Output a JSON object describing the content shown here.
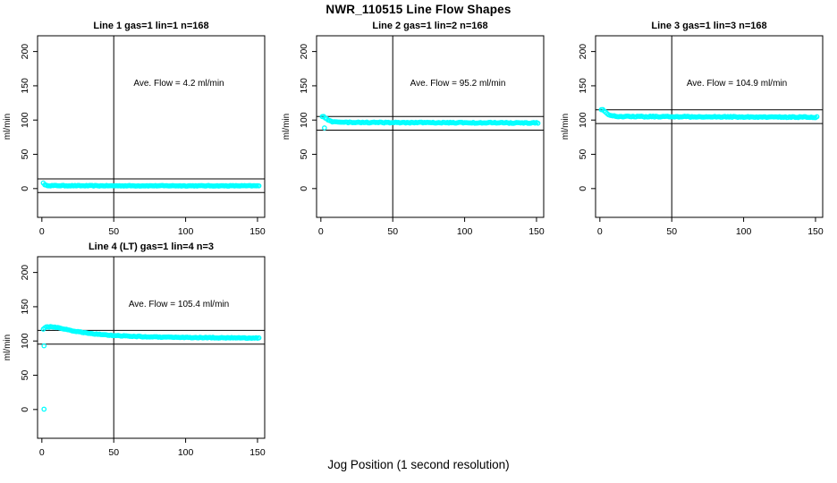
{
  "title": "NWR_110515  Line Flow Shapes",
  "xlabel": "Jog Position (1 second resolution)",
  "colors": {
    "marker": "#00ffff",
    "axis": "#000000",
    "background": "#ffffff",
    "text": "#000000"
  },
  "chart_data": [
    {
      "type": "scatter",
      "title": "Line 1 gas=1 lin=1 n=168",
      "n": 168,
      "annotation": "Ave. Flow =  4.2  ml/min",
      "ave_flow_ml_min": 4.2,
      "ylabel": "ml/min",
      "xlim": [
        -3,
        155
      ],
      "ylim": [
        -42,
        223
      ],
      "x_ticks": [
        0,
        50,
        100,
        150
      ],
      "y_ticks": [
        0,
        50,
        100,
        150,
        200
      ],
      "vline_x": 50,
      "ref_lines": [
        14.2,
        -5.8
      ],
      "x_range": [
        1,
        151
      ],
      "band_keypoints": [
        [
          1,
          8.5
        ],
        [
          2,
          5.2
        ],
        [
          3,
          4.6
        ],
        [
          6,
          4.3
        ],
        [
          30,
          4.1
        ],
        [
          151,
          4.0
        ]
      ],
      "outliers": [],
      "jitter": 0.45
    },
    {
      "type": "scatter",
      "title": "Line 2 gas=1 lin=2 n=168",
      "n": 168,
      "annotation": "Ave. Flow =  95.2  ml/min",
      "ave_flow_ml_min": 95.2,
      "ylabel": "ml/min",
      "xlim": [
        -3,
        155
      ],
      "ylim": [
        -42,
        223
      ],
      "x_ticks": [
        0,
        50,
        100,
        150
      ],
      "y_ticks": [
        0,
        50,
        100,
        150,
        200
      ],
      "vline_x": 50,
      "ref_lines": [
        105.2,
        85.2
      ],
      "x_range": [
        1,
        151
      ],
      "band_keypoints": [
        [
          1,
          105.5
        ],
        [
          2,
          104.8
        ],
        [
          4,
          101.5
        ],
        [
          6,
          98.8
        ],
        [
          9,
          97.2
        ],
        [
          14,
          96.6
        ],
        [
          40,
          96.4
        ],
        [
          90,
          96.2
        ],
        [
          151,
          95.8
        ]
      ],
      "outliers": [
        [
          2.5,
          88.5
        ]
      ],
      "jitter": 0.7
    },
    {
      "type": "scatter",
      "title": "Line 3 gas=1 lin=3 n=168",
      "n": 168,
      "annotation": "Ave. Flow =  104.9  ml/min",
      "ave_flow_ml_min": 104.9,
      "ylabel": "ml/min",
      "xlim": [
        -3,
        155
      ],
      "ylim": [
        -42,
        223
      ],
      "x_ticks": [
        0,
        50,
        100,
        150
      ],
      "y_ticks": [
        0,
        50,
        100,
        150,
        200
      ],
      "vline_x": 50,
      "ref_lines": [
        114.9,
        94.9
      ],
      "x_range": [
        1,
        151
      ],
      "band_keypoints": [
        [
          1,
          115.5
        ],
        [
          2,
          115.0
        ],
        [
          4,
          111.0
        ],
        [
          6,
          107.5
        ],
        [
          9,
          105.8
        ],
        [
          14,
          105.2
        ],
        [
          60,
          104.8
        ],
        [
          151,
          104.2
        ]
      ],
      "outliers": [],
      "jitter": 0.7
    },
    {
      "type": "scatter",
      "title": "Line 4 (LT) gas=1 lin=4 n=3",
      "n": 3,
      "annotation": "Ave. Flow =  105.4  ml/min",
      "ave_flow_ml_min": 105.4,
      "ylabel": "ml/min",
      "xlim": [
        -3,
        155
      ],
      "ylim": [
        -42,
        223
      ],
      "x_ticks": [
        0,
        50,
        100,
        150
      ],
      "y_ticks": [
        0,
        50,
        100,
        150,
        200
      ],
      "vline_x": 50,
      "ref_lines": [
        115.4,
        95.4
      ],
      "x_range": [
        1,
        151
      ],
      "band_keypoints": [
        [
          1,
          117.5
        ],
        [
          3,
          120.0
        ],
        [
          6,
          121.0
        ],
        [
          9,
          120.3
        ],
        [
          13,
          118.6
        ],
        [
          17,
          116.6
        ],
        [
          21,
          115.0
        ],
        [
          26,
          113.2
        ],
        [
          31,
          111.8
        ],
        [
          36,
          110.6
        ],
        [
          42,
          109.3
        ],
        [
          50,
          108.0
        ],
        [
          60,
          107.0
        ],
        [
          75,
          106.0
        ],
        [
          95,
          105.3
        ],
        [
          120,
          104.8
        ],
        [
          151,
          104.3
        ]
      ],
      "outliers": [
        [
          1.5,
          93.0
        ],
        [
          1.5,
          0.5
        ]
      ],
      "jitter": 0.55
    }
  ]
}
